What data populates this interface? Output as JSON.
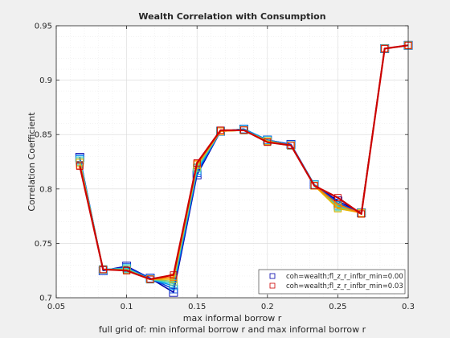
{
  "chart_data": {
    "type": "line",
    "title": "Wealth Correlation with Consumption",
    "xlabel": "max informal borrow r",
    "xlabel2": "full grid of: min informal borrow r and max informal borrow r",
    "ylabel": "Correlation Coefficient",
    "xlim": [
      0.05,
      0.3
    ],
    "ylim": [
      0.7,
      0.95
    ],
    "xticks": [
      "0.05",
      "0.1",
      "0.15",
      "0.2",
      "0.25",
      "0.3"
    ],
    "yticks": [
      "0.7",
      "0.75",
      "0.8",
      "0.85",
      "0.9",
      "0.95"
    ],
    "grid": true,
    "legend_position": "bottom-right",
    "x": [
      0.0667,
      0.0833,
      0.1,
      0.1167,
      0.1333,
      0.15,
      0.1667,
      0.1833,
      0.2,
      0.2167,
      0.2333,
      0.25,
      0.2667,
      0.2833,
      0.3
    ],
    "series": [
      {
        "name": "coh=wealth;fl_z_r_infbr_min=0.00",
        "color": "#0000aa",
        "legend": true,
        "values": [
          0.829,
          0.725,
          0.729,
          0.718,
          0.705,
          0.813,
          0.853,
          0.855,
          0.845,
          0.841,
          0.804,
          0.789,
          0.778,
          0.929,
          0.932
        ]
      },
      {
        "name": "",
        "color": "#0044dd",
        "legend": false,
        "values": [
          0.828,
          0.725,
          0.728,
          0.718,
          0.708,
          0.815,
          0.853,
          0.855,
          0.845,
          0.841,
          0.804,
          0.787,
          0.778,
          0.929,
          0.932
        ]
      },
      {
        "name": "",
        "color": "#0099ee",
        "legend": false,
        "values": [
          0.827,
          0.726,
          0.727,
          0.717,
          0.711,
          0.817,
          0.853,
          0.855,
          0.845,
          0.84,
          0.804,
          0.785,
          0.778,
          0.929,
          0.932
        ]
      },
      {
        "name": "",
        "color": "#33cccc",
        "legend": false,
        "values": [
          0.826,
          0.726,
          0.727,
          0.717,
          0.713,
          0.819,
          0.853,
          0.854,
          0.844,
          0.84,
          0.804,
          0.784,
          0.778,
          0.929,
          0.932
        ]
      },
      {
        "name": "",
        "color": "#88cc66",
        "legend": false,
        "values": [
          0.825,
          0.726,
          0.726,
          0.717,
          0.715,
          0.82,
          0.853,
          0.854,
          0.844,
          0.84,
          0.803,
          0.783,
          0.778,
          0.929,
          0.932
        ]
      },
      {
        "name": "",
        "color": "#e8b400",
        "legend": false,
        "values": [
          0.824,
          0.726,
          0.725,
          0.717,
          0.717,
          0.822,
          0.853,
          0.854,
          0.844,
          0.84,
          0.803,
          0.782,
          0.778,
          0.929,
          0.932
        ]
      },
      {
        "name": "",
        "color": "#ff7700",
        "legend": false,
        "values": [
          0.822,
          0.726,
          0.725,
          0.717,
          0.719,
          0.823,
          0.853,
          0.854,
          0.843,
          0.84,
          0.803,
          0.786,
          0.777,
          0.929,
          0.932
        ]
      },
      {
        "name": "coh=wealth;fl_z_r_infbr_min=0.03",
        "color": "#cc0000",
        "legend": true,
        "values": [
          0.821,
          0.726,
          0.725,
          0.717,
          0.721,
          0.824,
          0.854,
          0.854,
          0.843,
          0.84,
          0.803,
          0.792,
          0.777,
          0.929,
          0.932
        ]
      }
    ]
  }
}
